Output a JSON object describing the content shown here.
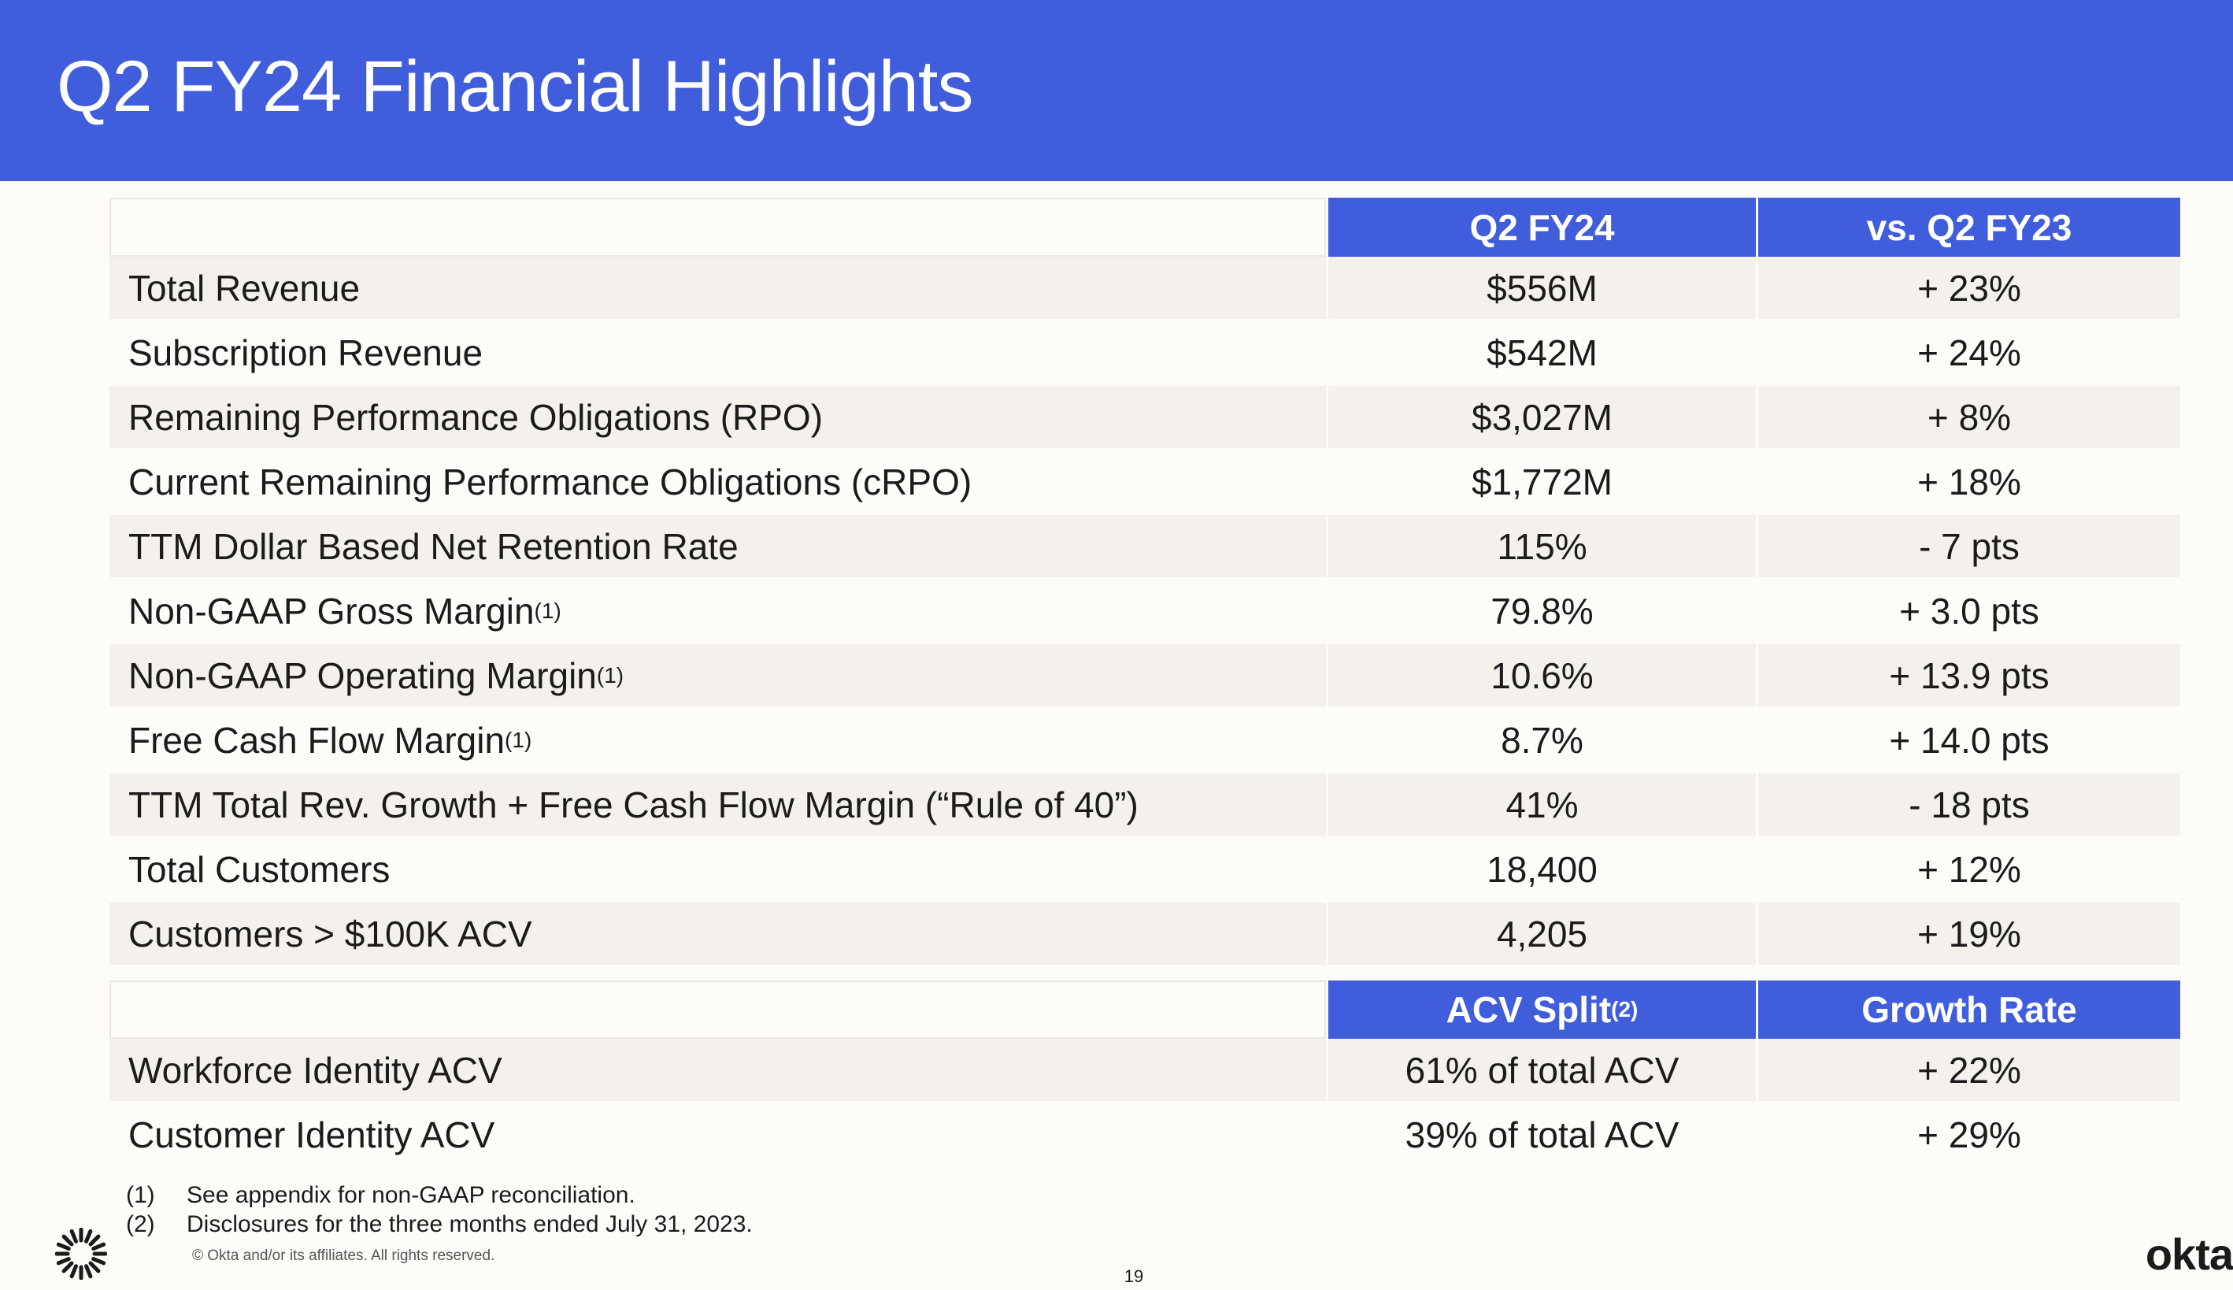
{
  "header": {
    "title": "Q2 FY24 Financial Highlights"
  },
  "table": {
    "columns": [
      "Q2 FY24",
      "vs. Q2 FY23"
    ],
    "rows": [
      {
        "metric": "Total Revenue",
        "value": "$556M",
        "change": "+ 23%"
      },
      {
        "metric": "Subscription Revenue",
        "value": "$542M",
        "change": "+ 24%"
      },
      {
        "metric": "Remaining Performance Obligations (RPO)",
        "value": "$3,027M",
        "change": "+ 8%"
      },
      {
        "metric": "Current Remaining Performance Obligations (cRPO)",
        "value": "$1,772M",
        "change": "+ 18%"
      },
      {
        "metric": "TTM Dollar Based Net Retention Rate",
        "value": "115%",
        "change": "- 7 pts"
      },
      {
        "metric": "Non-GAAP Gross Margin",
        "note": "(1)",
        "value": "79.8%",
        "change": "+ 3.0 pts"
      },
      {
        "metric": "Non-GAAP Operating Margin",
        "note": "(1)",
        "value": "10.6%",
        "change": "+ 13.9 pts"
      },
      {
        "metric": "Free Cash Flow Margin",
        "note": "(1)",
        "value": "8.7%",
        "change": "+ 14.0 pts"
      },
      {
        "metric": "TTM Total Rev. Growth + Free Cash Flow Margin (“Rule of 40”)",
        "value": "41%",
        "change": "- 18 pts"
      },
      {
        "metric": "Total Customers",
        "value": "18,400",
        "change": "+ 12%"
      },
      {
        "metric": "Customers > $100K ACV",
        "value": "4,205",
        "change": "+ 19%"
      }
    ]
  },
  "acv_table": {
    "columns": [
      {
        "label": "ACV Split",
        "note": "(2)"
      },
      {
        "label": "Growth Rate"
      }
    ],
    "rows": [
      {
        "metric": "Workforce Identity ACV",
        "value": "61% of total ACV",
        "change": "+ 22%"
      },
      {
        "metric": "Customer Identity ACV",
        "value": "39% of total ACV",
        "change": "+ 29%"
      }
    ]
  },
  "footnotes": [
    {
      "marker": "(1)",
      "text": "See appendix for non-GAAP reconciliation."
    },
    {
      "marker": "(2)",
      "text": "Disclosures for the three months ended July 31, 2023."
    }
  ],
  "copyright": "© Okta and/or its affiliates. All rights reserved.",
  "page_number": "19",
  "logo": "okta"
}
